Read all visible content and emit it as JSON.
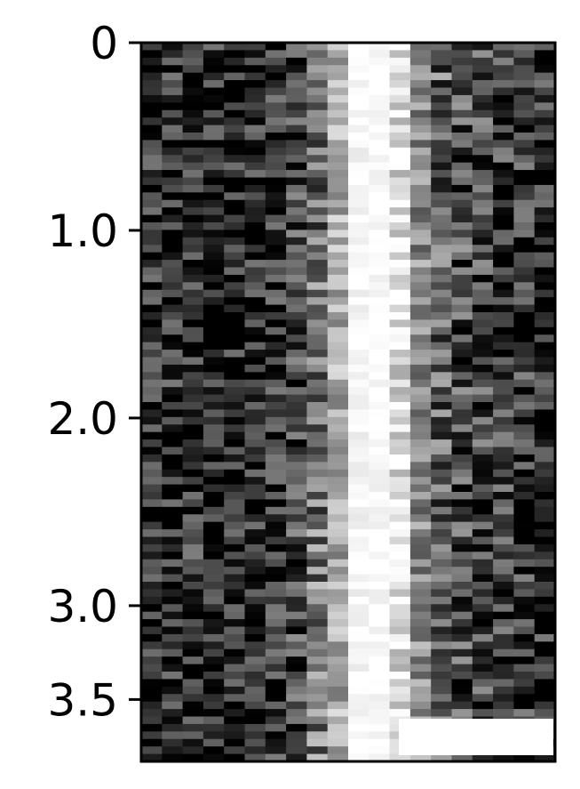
{
  "chart_data": {
    "type": "heatmap",
    "colormap": "grayscale",
    "yaxis": {
      "range": [
        0,
        3.83
      ],
      "inverted": true,
      "ticks": [
        {
          "value": 0,
          "label": "0"
        },
        {
          "value": 1.0,
          "label": "1.0"
        },
        {
          "value": 2.0,
          "label": "2.0"
        },
        {
          "value": 3.0,
          "label": "3.0"
        },
        {
          "value": 3.5,
          "label": "3.5"
        }
      ]
    },
    "xaxis": {
      "ticks": []
    },
    "columns": 20,
    "rows": 96,
    "column_mean_intensity": [
      0.15,
      0.18,
      0.17,
      0.14,
      0.13,
      0.14,
      0.18,
      0.25,
      0.45,
      0.68,
      0.97,
      0.99,
      0.88,
      0.55,
      0.38,
      0.3,
      0.27,
      0.22,
      0.2,
      0.16
    ],
    "grid": false,
    "legend": "none",
    "scale_bar": {
      "position": "bottom-right",
      "label": ""
    }
  }
}
